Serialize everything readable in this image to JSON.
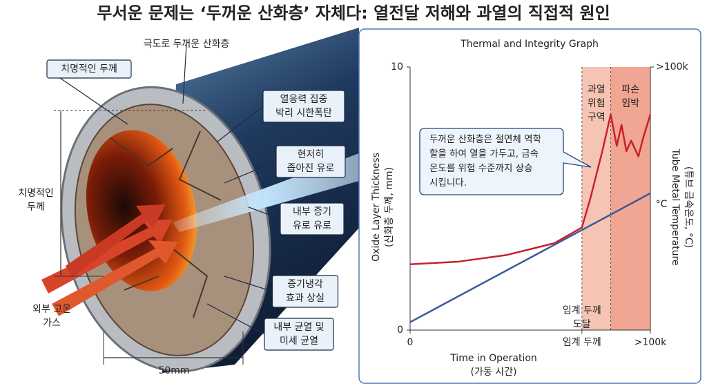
{
  "title": "무서운 문제는 ‘두꺼운 산화층’ 자체다: 열전달 저해와 과열의 직접적 원인",
  "illustration": {
    "labels": [
      {
        "lines": [
          "극도로 두꺼운 산화층"
        ]
      },
      {
        "lines": [
          "치명적인 두께"
        ]
      },
      {
        "lines": [
          "열응력 집중",
          "박리 시한폭탄"
        ]
      },
      {
        "lines": [
          "현저히",
          "좁아진 유로"
        ]
      },
      {
        "lines": [
          "내부 증기",
          "유로 유로"
        ]
      },
      {
        "lines": [
          "증기냉각",
          "효과 상실"
        ]
      },
      {
        "lines": [
          "내부 균열 및",
          "미세 균열"
        ]
      },
      {
        "lines": [
          "치명적인",
          "두께"
        ]
      },
      {
        "lines": [
          "외부 고온",
          "가스"
        ]
      },
      {
        "lines": [
          "50mm"
        ]
      }
    ]
  },
  "graph": {
    "type": "line",
    "title": "Thermal  and Integrity Graph",
    "xlabel": [
      "Time in Operation",
      "(가동 시간)"
    ],
    "ylabel": [
      "Oxide Layer Thickness",
      "(산화층 두께, mm)"
    ],
    "y2label": [
      "Tube Metal Temperature",
      "(튜브 금속온도, °C)"
    ],
    "y2unit": "°C",
    "xlim": [
      0,
      10
    ],
    "xticks": [
      0,
      {
        "value": 7.15,
        "label": "임계 두께"
      },
      {
        "value": 10,
        "label": ">100k"
      }
    ],
    "ylim": [
      0,
      10
    ],
    "yticks": [
      0,
      10
    ],
    "y2lim": [
      0,
      10
    ],
    "y2ticks": [
      {
        "value": 10,
        "label": ">100k"
      }
    ],
    "zones": [
      {
        "start": 7.15,
        "end": 8.35,
        "lines": [
          "과열",
          "위험",
          "구역"
        ],
        "color": "#f6c4b4"
      },
      {
        "start": 8.35,
        "end": 10,
        "lines": [
          "파손",
          "임박"
        ],
        "color": "#f0a692"
      }
    ],
    "threshold_note": {
      "x": 7.15,
      "lines": [
        "임계 두께",
        "도달"
      ]
    },
    "callout": [
      "두꺼운 산화층은 절연체 역학",
      "할을 하여 열을 가두고, 금속",
      "온도를 위험 수준까지 상승",
      "시킵니다."
    ],
    "series": [
      {
        "color": "#c8202a",
        "axis": "y2",
        "x": [
          0,
          2,
          4,
          6,
          7.15,
          7.5,
          8,
          8.35,
          8.6,
          8.8,
          9.0,
          9.2,
          9.5,
          9.7,
          10
        ],
        "values": [
          2.5,
          2.6,
          2.85,
          3.3,
          3.9,
          5.0,
          6.8,
          8.2,
          7.0,
          7.8,
          6.8,
          7.2,
          6.6,
          7.3,
          8.2
        ]
      },
      {
        "color": "#3a5a9a",
        "x": [
          0,
          10
        ],
        "values": [
          0.3,
          5.2
        ]
      }
    ]
  }
}
